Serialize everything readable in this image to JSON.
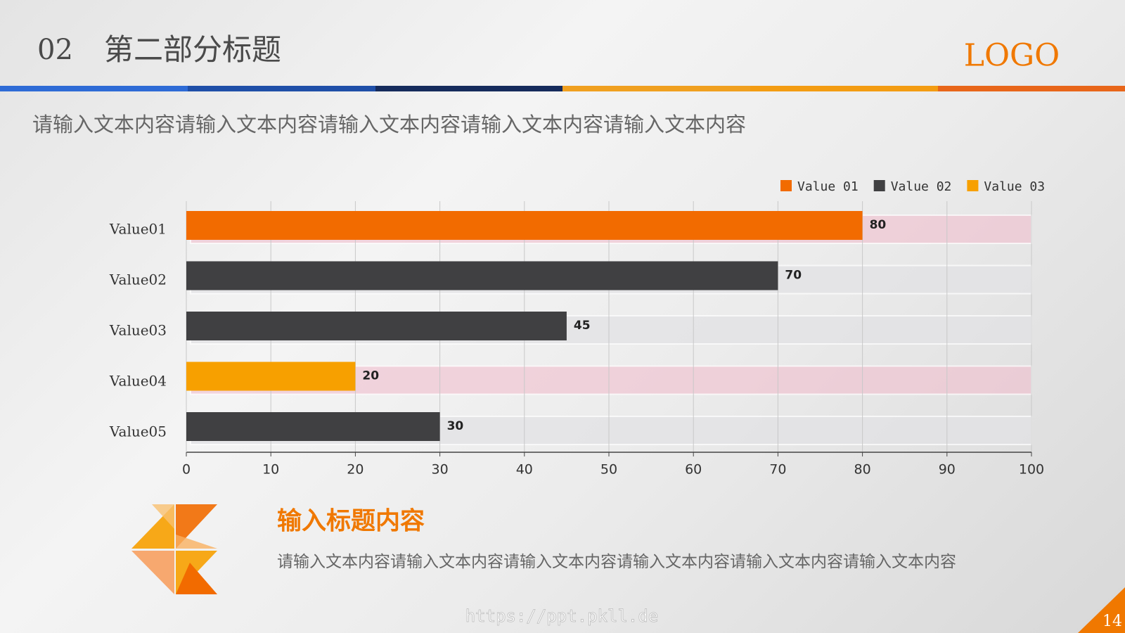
{
  "header": {
    "number": "02",
    "title": "第二部分标题",
    "logo": "LOGO",
    "subtitle": "请输入文本内容请输入文本内容请输入文本内容请输入文本内容请输入文本内容"
  },
  "chart_data": {
    "type": "hbar",
    "categories": [
      "Value01",
      "Value02",
      "Value03",
      "Value04",
      "Value05"
    ],
    "series": [
      {
        "name": "Value 01",
        "color": "#f26b00",
        "values": [
          80,
          null,
          null,
          null,
          null
        ]
      },
      {
        "name": "Value 02",
        "color": "#404042",
        "values": [
          null,
          70,
          45,
          null,
          30
        ]
      },
      {
        "name": "Value 03",
        "color": "#f7a000",
        "values": [
          null,
          null,
          null,
          20,
          null
        ]
      }
    ],
    "xlim": [
      0,
      100
    ],
    "xticks": [
      0,
      10,
      20,
      30,
      40,
      50,
      60,
      70,
      80,
      90,
      100
    ],
    "grid": true,
    "legend": "upper right"
  },
  "section": {
    "title": "输入标题内容",
    "body": "请输入文本内容请输入文本内容请输入文本内容请输入文本内容请输入文本内容请输入文本内容"
  },
  "footer": {
    "url": "https://ppt.pkll.de",
    "page": "14"
  }
}
